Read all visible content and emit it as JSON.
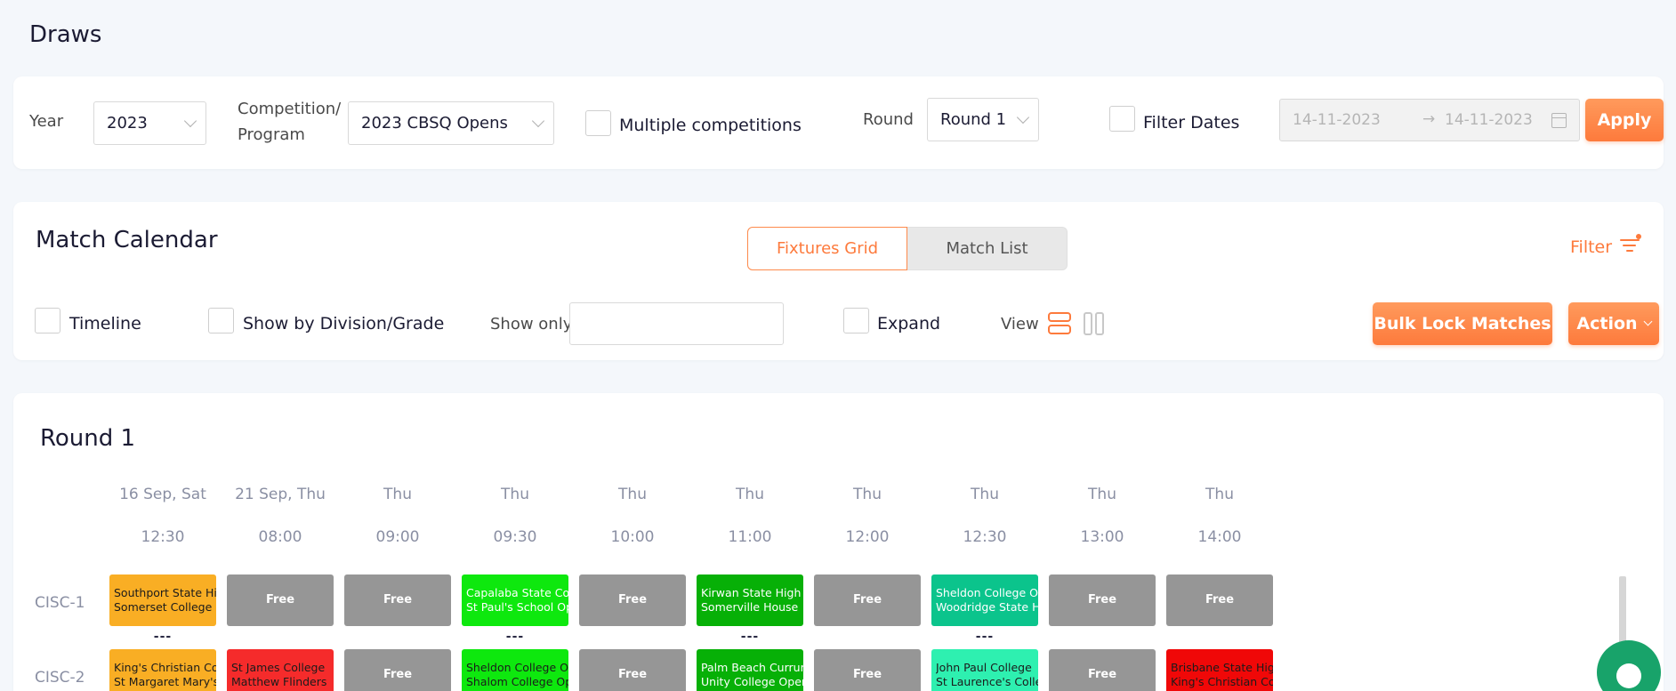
{
  "page_title": "Draws",
  "filters": {
    "year_label": "Year",
    "year_value": "2023",
    "competition_label_line1": "Competition/",
    "competition_label_line2": "Program",
    "competition_value": "2023 CBSQ Opens",
    "multiple_competitions_label": "Multiple competitions",
    "round_label": "Round",
    "round_value": "Round 1",
    "filter_dates_label": "Filter Dates",
    "date_from": "14-11-2023",
    "date_arrow": "→",
    "date_to": "14-11-2023",
    "apply_label": "Apply"
  },
  "calendar": {
    "title": "Match Calendar",
    "tabs": [
      {
        "label": "Fixtures Grid",
        "active": true
      },
      {
        "label": "Match List",
        "active": false
      }
    ],
    "filter_label": "Filter",
    "timeline_label": "Timeline",
    "show_by_division_label": "Show by Division/Grade",
    "show_only_label": "Show only",
    "show_only_value": "",
    "expand_label": "Expand",
    "view_label": "View",
    "bulk_lock_label": "Bulk Lock Matches",
    "action_label": "Action",
    "accent_color": "#fd7a3c"
  },
  "round": {
    "title": "Round 1",
    "columns": [
      {
        "day": "16 Sep, Sat",
        "time": "12:30"
      },
      {
        "day": "21 Sep, Thu",
        "time": "08:00"
      },
      {
        "day": "Thu",
        "time": "09:00"
      },
      {
        "day": "Thu",
        "time": "09:30"
      },
      {
        "day": "Thu",
        "time": "10:00"
      },
      {
        "day": "Thu",
        "time": "11:00"
      },
      {
        "day": "Thu",
        "time": "12:00"
      },
      {
        "day": "Thu",
        "time": "12:30"
      },
      {
        "day": "Thu",
        "time": "13:00"
      },
      {
        "day": "Thu",
        "time": "14:00"
      }
    ],
    "rows": [
      {
        "label": "CISC-1",
        "cells": [
          {
            "free": false,
            "line1": "Southport State High",
            "line2": "Somerset College",
            "bg": "#f9ae24",
            "fg": "#1b1b1b",
            "dashes": "---"
          },
          {
            "free": true,
            "label": "Free"
          },
          {
            "free": true,
            "label": "Free"
          },
          {
            "free": false,
            "line1": "Capalaba State College",
            "line2": "St Paul's School Open",
            "bg": "#0ee80e",
            "fg": "#ffffff",
            "dashes": "---"
          },
          {
            "free": true,
            "label": "Free"
          },
          {
            "free": false,
            "line1": "Kirwan State High",
            "line2": "Somerville House",
            "bg": "#07b007",
            "fg": "#ffffff",
            "dashes": "---"
          },
          {
            "free": true,
            "label": "Free"
          },
          {
            "free": false,
            "line1": "Sheldon College Open",
            "line2": "Woodridge State High",
            "bg": "#0bc48c",
            "fg": "#ffffff",
            "dashes": "---"
          },
          {
            "free": true,
            "label": "Free"
          },
          {
            "free": true,
            "label": "Free"
          }
        ]
      },
      {
        "label": "CISC-2",
        "cells": [
          {
            "free": false,
            "line1": "King's Christian College",
            "line2": "St Margaret Mary's",
            "bg": "#f9ae24",
            "fg": "#1b1b1b"
          },
          {
            "free": false,
            "line1": "St James College",
            "line2": "Matthew Flinders",
            "bg": "#f52b2b",
            "fg": "#1b1b1b"
          },
          {
            "free": true,
            "label": "Free"
          },
          {
            "free": false,
            "line1": "Sheldon College Open",
            "line2": "Shalom College Open",
            "bg": "#0ee80e",
            "fg": "#1b1b1b"
          },
          {
            "free": true,
            "label": "Free"
          },
          {
            "free": false,
            "line1": "Palm Beach Currumbin",
            "line2": "Unity College Open",
            "bg": "#07b007",
            "fg": "#ffffff"
          },
          {
            "free": true,
            "label": "Free"
          },
          {
            "free": false,
            "line1": "John Paul College",
            "line2": "St Laurence's College",
            "bg": "#2ef0b0",
            "fg": "#1b1b1b"
          },
          {
            "free": true,
            "label": "Free"
          },
          {
            "free": false,
            "line1": "Brisbane State High",
            "line2": "King's Christian College",
            "bg": "#f00808",
            "fg": "#1b1b1b"
          }
        ]
      }
    ]
  }
}
